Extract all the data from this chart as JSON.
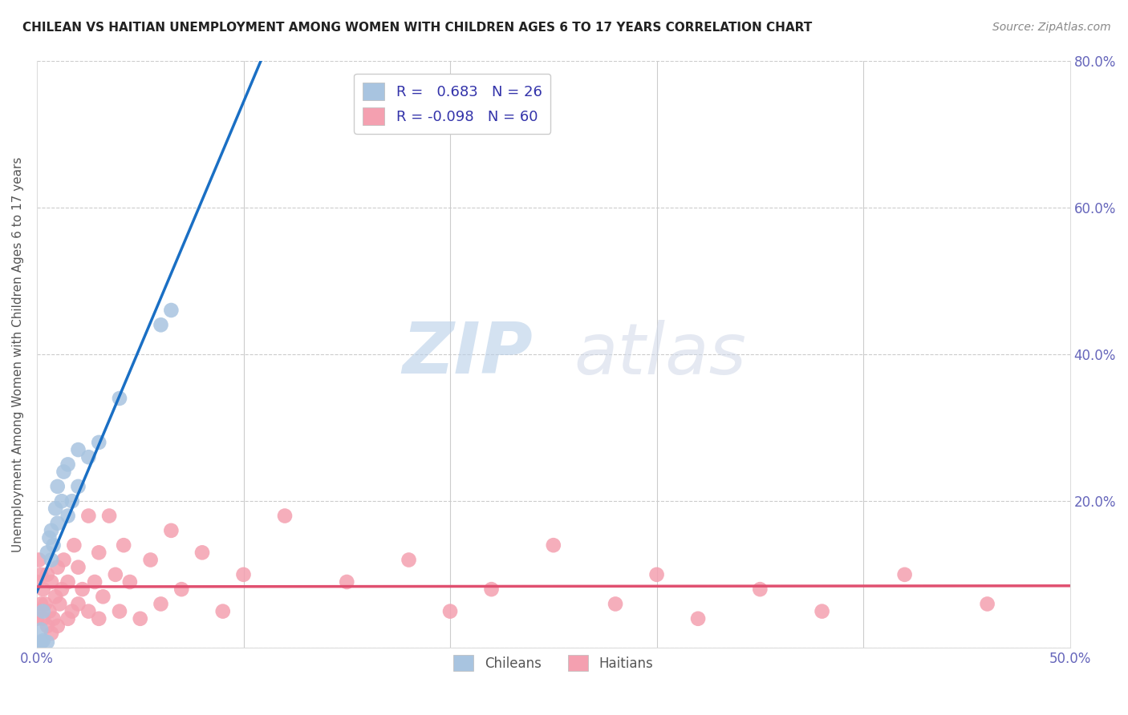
{
  "title": "CHILEAN VS HAITIAN UNEMPLOYMENT AMONG WOMEN WITH CHILDREN AGES 6 TO 17 YEARS CORRELATION CHART",
  "source": "Source: ZipAtlas.com",
  "ylabel": "Unemployment Among Women with Children Ages 6 to 17 years",
  "xlim": [
    0.0,
    0.5
  ],
  "ylim": [
    0.0,
    0.8
  ],
  "xticks": [
    0.0,
    0.1,
    0.2,
    0.3,
    0.4,
    0.5
  ],
  "xticklabels_show": [
    "0.0%",
    "",
    "",
    "",
    "",
    "50.0%"
  ],
  "yticks": [
    0.0,
    0.2,
    0.4,
    0.6,
    0.8
  ],
  "yticklabels_right": [
    "",
    "20.0%",
    "40.0%",
    "60.0%",
    "80.0%"
  ],
  "legend_r_chilean": "0.683",
  "legend_n_chilean": "26",
  "legend_r_haitian": "-0.098",
  "legend_n_haitian": "60",
  "chilean_color": "#a8c4e0",
  "haitian_color": "#f4a0b0",
  "chilean_line_color": "#1a6fc4",
  "haitian_line_color": "#e05070",
  "background_color": "#ffffff",
  "grid_color": "#cccccc",
  "watermark_zip": "ZIP",
  "watermark_atlas": "atlas",
  "chilean_x": [
    0.001,
    0.002,
    0.002,
    0.003,
    0.003,
    0.005,
    0.005,
    0.006,
    0.007,
    0.007,
    0.008,
    0.009,
    0.01,
    0.01,
    0.012,
    0.013,
    0.015,
    0.015,
    0.017,
    0.02,
    0.02,
    0.025,
    0.03,
    0.04,
    0.06,
    0.065
  ],
  "chilean_y": [
    0.005,
    0.008,
    0.025,
    0.01,
    0.05,
    0.008,
    0.13,
    0.15,
    0.12,
    0.16,
    0.14,
    0.19,
    0.17,
    0.22,
    0.2,
    0.24,
    0.18,
    0.25,
    0.2,
    0.27,
    0.22,
    0.26,
    0.28,
    0.34,
    0.44,
    0.46
  ],
  "haitian_x": [
    0.0,
    0.0,
    0.001,
    0.001,
    0.002,
    0.002,
    0.003,
    0.003,
    0.004,
    0.005,
    0.005,
    0.006,
    0.007,
    0.007,
    0.008,
    0.009,
    0.01,
    0.01,
    0.011,
    0.012,
    0.013,
    0.015,
    0.015,
    0.017,
    0.018,
    0.02,
    0.02,
    0.022,
    0.025,
    0.025,
    0.028,
    0.03,
    0.03,
    0.032,
    0.035,
    0.038,
    0.04,
    0.042,
    0.045,
    0.05,
    0.055,
    0.06,
    0.065,
    0.07,
    0.08,
    0.09,
    0.1,
    0.12,
    0.15,
    0.18,
    0.2,
    0.22,
    0.25,
    0.28,
    0.3,
    0.32,
    0.35,
    0.38,
    0.42,
    0.46
  ],
  "haitian_y": [
    0.04,
    0.09,
    0.05,
    0.12,
    0.06,
    0.1,
    0.04,
    0.08,
    0.06,
    0.03,
    0.1,
    0.05,
    0.02,
    0.09,
    0.04,
    0.07,
    0.03,
    0.11,
    0.06,
    0.08,
    0.12,
    0.04,
    0.09,
    0.05,
    0.14,
    0.06,
    0.11,
    0.08,
    0.05,
    0.18,
    0.09,
    0.04,
    0.13,
    0.07,
    0.18,
    0.1,
    0.05,
    0.14,
    0.09,
    0.04,
    0.12,
    0.06,
    0.16,
    0.08,
    0.13,
    0.05,
    0.1,
    0.18,
    0.09,
    0.12,
    0.05,
    0.08,
    0.14,
    0.06,
    0.1,
    0.04,
    0.08,
    0.05,
    0.1,
    0.06
  ]
}
